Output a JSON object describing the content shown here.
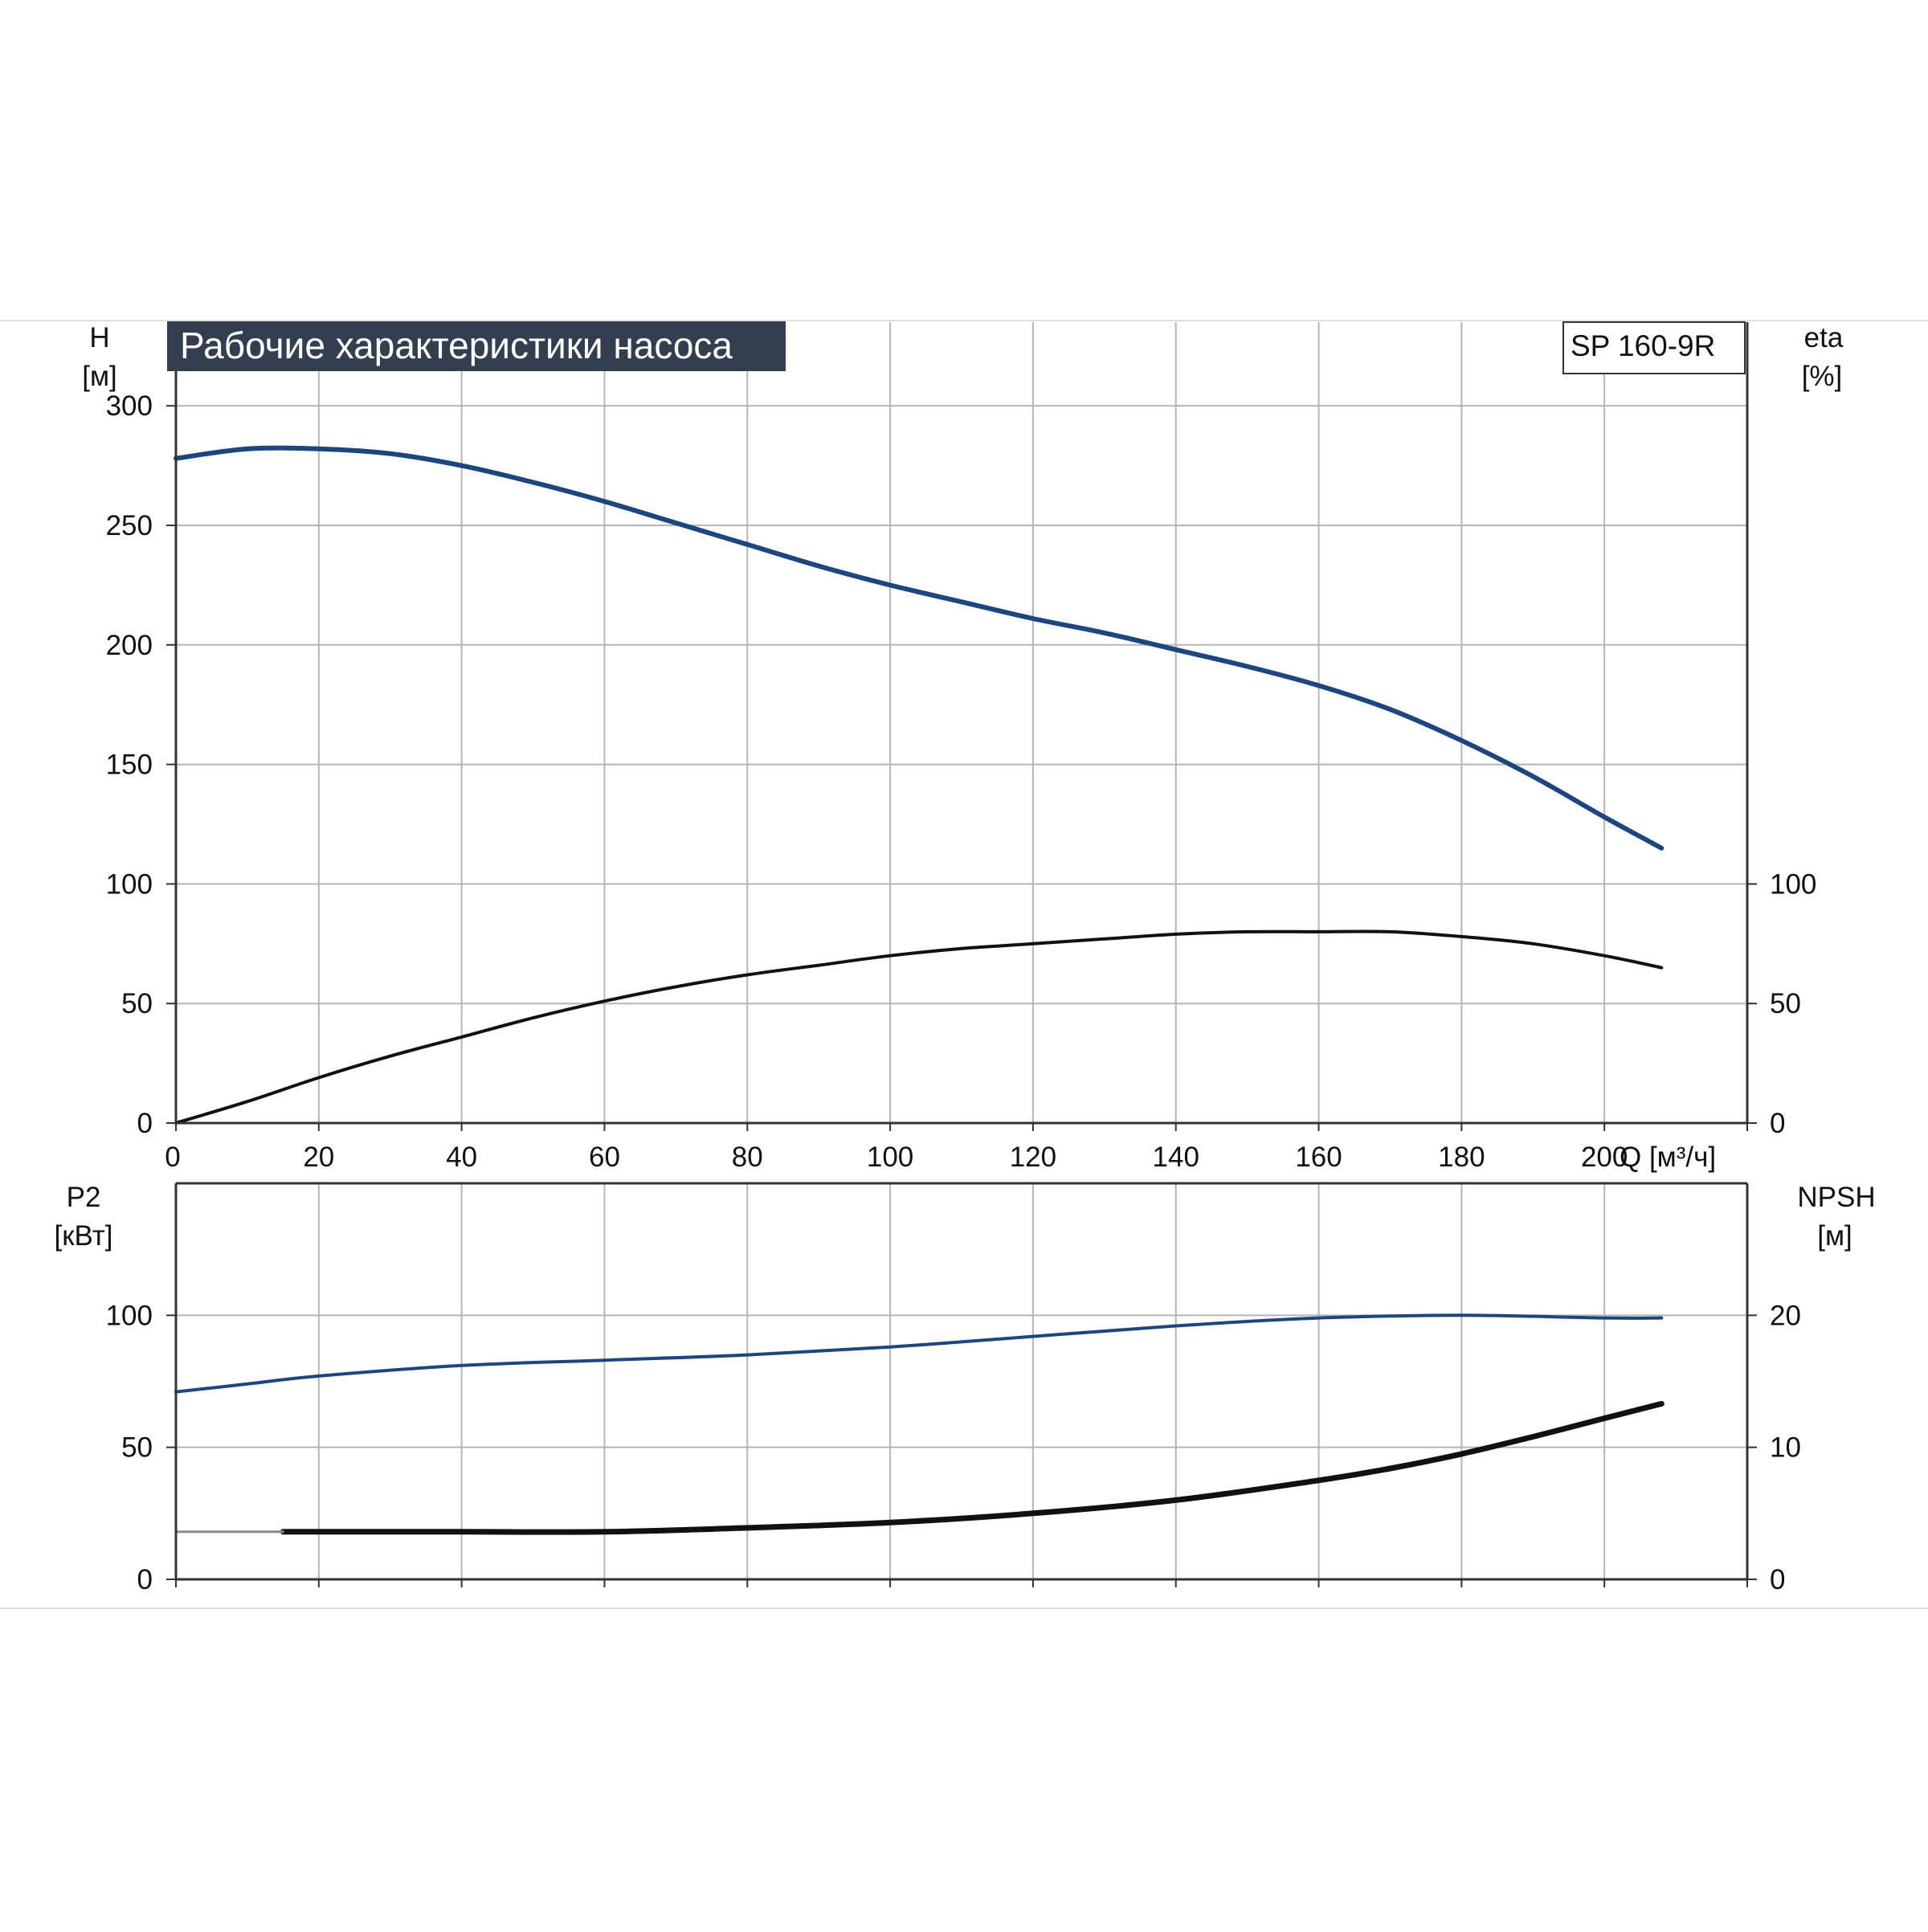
{
  "title": "Рабочие характеристики насоса",
  "model": "SP 160-9R",
  "colors": {
    "grid": "#b5b5b5",
    "axis": "#333333",
    "title_bg": "#333e4f",
    "curve_blue": "#1d4680",
    "curve_black": "#111111",
    "flat_segment": "#888888",
    "frame": "#dddddd"
  },
  "chart_data": [
    {
      "type": "line",
      "panel": "head-efficiency",
      "x_axis": {
        "label": "Q [м³/ч]",
        "ticks": [
          0,
          20,
          40,
          60,
          80,
          100,
          120,
          140,
          160,
          180,
          200
        ],
        "range": [
          0,
          220
        ]
      },
      "y_left": {
        "label": "H",
        "unit": "[м]",
        "ticks": [
          0,
          50,
          100,
          150,
          200,
          250,
          300
        ],
        "range": [
          0,
          335
        ]
      },
      "y_right": {
        "label": "eta",
        "unit": "[%]",
        "ticks": [
          0,
          50,
          100
        ],
        "range": [
          0,
          335
        ]
      },
      "grid": true,
      "series": [
        {
          "axis": "left",
          "color": "#1d4680",
          "points": [
            [
              0,
              278
            ],
            [
              10,
              282
            ],
            [
              20,
              282
            ],
            [
              30,
              280
            ],
            [
              40,
              275
            ],
            [
              50,
              268
            ],
            [
              60,
              260
            ],
            [
              70,
              251
            ],
            [
              80,
              242
            ],
            [
              90,
              233
            ],
            [
              100,
              225
            ],
            [
              110,
              218
            ],
            [
              120,
              211
            ],
            [
              130,
              205
            ],
            [
              140,
              198
            ],
            [
              150,
              191
            ],
            [
              160,
              183
            ],
            [
              170,
              173
            ],
            [
              180,
              160
            ],
            [
              190,
              145
            ],
            [
              200,
              128
            ],
            [
              208,
              115
            ]
          ]
        },
        {
          "axis": "right",
          "color": "#111111",
          "points": [
            [
              0,
              0
            ],
            [
              10,
              9
            ],
            [
              20,
              19
            ],
            [
              30,
              28
            ],
            [
              40,
              36
            ],
            [
              50,
              44
            ],
            [
              60,
              51
            ],
            [
              70,
              57
            ],
            [
              80,
              62
            ],
            [
              90,
              66
            ],
            [
              100,
              70
            ],
            [
              110,
              73
            ],
            [
              120,
              75
            ],
            [
              130,
              77
            ],
            [
              140,
              79
            ],
            [
              150,
              80
            ],
            [
              160,
              80
            ],
            [
              170,
              80
            ],
            [
              180,
              78
            ],
            [
              190,
              75
            ],
            [
              200,
              70
            ],
            [
              208,
              65
            ]
          ]
        }
      ]
    },
    {
      "type": "line",
      "panel": "power-npsh",
      "x_axis": {
        "range": [
          0,
          220
        ]
      },
      "y_left": {
        "label": "P2",
        "unit": "[кВт]",
        "ticks": [
          0,
          50,
          100
        ],
        "range": [
          0,
          150
        ]
      },
      "y_right": {
        "label": "NPSH",
        "unit": "[м]",
        "ticks": [
          0,
          10,
          20
        ],
        "range": [
          0,
          30
        ]
      },
      "grid": true,
      "series": [
        {
          "axis": "left",
          "color": "#1d4680",
          "points": [
            [
              0,
              71
            ],
            [
              10,
              74
            ],
            [
              20,
              77
            ],
            [
              40,
              81
            ],
            [
              60,
              83
            ],
            [
              80,
              85
            ],
            [
              100,
              88
            ],
            [
              120,
              92
            ],
            [
              140,
              96
            ],
            [
              160,
              99
            ],
            [
              180,
              100
            ],
            [
              200,
              99
            ],
            [
              208,
              99
            ]
          ]
        },
        {
          "axis": "right",
          "color": "#111111",
          "points": [
            [
              15,
              3.6
            ],
            [
              20,
              3.6
            ],
            [
              40,
              3.6
            ],
            [
              60,
              3.6
            ],
            [
              80,
              3.9
            ],
            [
              100,
              4.3
            ],
            [
              120,
              5.0
            ],
            [
              140,
              6.0
            ],
            [
              160,
              7.5
            ],
            [
              170,
              8.4
            ],
            [
              180,
              9.5
            ],
            [
              190,
              10.8
            ],
            [
              200,
              12.2
            ],
            [
              208,
              13.3
            ]
          ]
        },
        {
          "axis": "right",
          "color": "#888888",
          "points": [
            [
              0,
              3.6
            ],
            [
              15,
              3.6
            ]
          ]
        }
      ]
    }
  ]
}
